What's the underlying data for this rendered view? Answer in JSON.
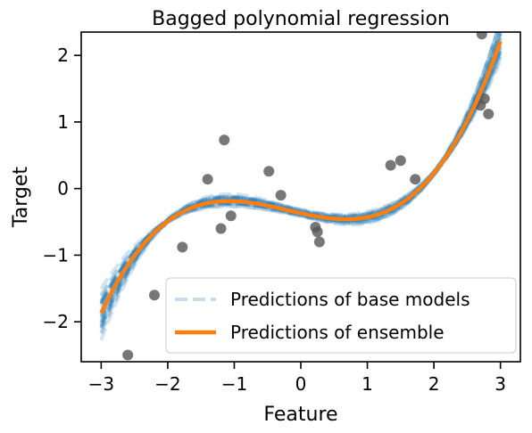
{
  "chart_data": {
    "type": "line",
    "title": "Bagged polynomial regression",
    "xlabel": "Feature",
    "ylabel": "Target",
    "xlim": [
      -3.3,
      3.3
    ],
    "ylim": [
      -2.6,
      2.35
    ],
    "xticks": [
      -3,
      -2,
      -1,
      0,
      1,
      2,
      3
    ],
    "yticks": [
      -2,
      -1,
      0,
      1,
      2
    ],
    "xtick_labels": [
      "−3",
      "−2",
      "−1",
      "0",
      "1",
      "2",
      "3"
    ],
    "ytick_labels": [
      "−2",
      "−1",
      "0",
      "1",
      "2"
    ],
    "grid": false,
    "legend_position": "bottom-right",
    "colors": {
      "base_models": "#1f77b4",
      "ensemble": "#ff7f0e",
      "points": "#555555"
    },
    "legend": [
      {
        "label": "Predictions of base models",
        "style": "dashed",
        "color": "#1f77b4"
      },
      {
        "label": "Predictions of ensemble",
        "style": "solid",
        "color": "#ff7f0e"
      }
    ],
    "ensemble_coefficients": {
      "a": 0.1,
      "b": 0.06,
      "c": -0.22,
      "d": -0.37
    },
    "ensemble_x_range": [
      -3,
      3
    ],
    "base_models": [
      {
        "a": 0.118,
        "b": 0.058,
        "c": -0.28,
        "d": -0.36
      },
      {
        "a": 0.084,
        "b": 0.068,
        "c": -0.15,
        "d": -0.4
      },
      {
        "a": 0.104,
        "b": 0.045,
        "c": -0.24,
        "d": -0.33
      },
      {
        "a": 0.095,
        "b": 0.075,
        "c": -0.19,
        "d": -0.42
      },
      {
        "a": 0.112,
        "b": 0.052,
        "c": -0.27,
        "d": -0.35
      },
      {
        "a": 0.09,
        "b": 0.064,
        "c": -0.18,
        "d": -0.38
      },
      {
        "a": 0.121,
        "b": 0.061,
        "c": -0.31,
        "d": -0.37
      },
      {
        "a": 0.081,
        "b": 0.055,
        "c": -0.14,
        "d": -0.34
      },
      {
        "a": 0.1,
        "b": 0.072,
        "c": -0.23,
        "d": -0.41
      },
      {
        "a": 0.108,
        "b": 0.048,
        "c": -0.25,
        "d": -0.32
      },
      {
        "a": 0.093,
        "b": 0.066,
        "c": -0.2,
        "d": -0.39
      },
      {
        "a": 0.115,
        "b": 0.057,
        "c": -0.29,
        "d": -0.36
      },
      {
        "a": 0.087,
        "b": 0.062,
        "c": -0.16,
        "d": -0.37
      },
      {
        "a": 0.102,
        "b": 0.069,
        "c": -0.22,
        "d": -0.4
      },
      {
        "a": 0.097,
        "b": 0.051,
        "c": -0.21,
        "d": -0.33
      },
      {
        "a": 0.125,
        "b": 0.05,
        "c": -0.33,
        "d": -0.34
      },
      {
        "a": 0.079,
        "b": 0.07,
        "c": -0.13,
        "d": -0.39
      },
      {
        "a": 0.106,
        "b": 0.063,
        "c": -0.24,
        "d": -0.38
      },
      {
        "a": 0.091,
        "b": 0.058,
        "c": -0.19,
        "d": -0.36
      },
      {
        "a": 0.11,
        "b": 0.066,
        "c": -0.26,
        "d": -0.41
      },
      {
        "a": 0.099,
        "b": 0.047,
        "c": -0.22,
        "d": -0.31
      },
      {
        "a": 0.117,
        "b": 0.071,
        "c": -0.3,
        "d": -0.39
      },
      {
        "a": 0.085,
        "b": 0.053,
        "c": -0.15,
        "d": -0.35
      },
      {
        "a": 0.103,
        "b": 0.06,
        "c": -0.23,
        "d": -0.37
      },
      {
        "a": 0.094,
        "b": 0.067,
        "c": -0.2,
        "d": -0.4
      },
      {
        "a": 0.113,
        "b": 0.054,
        "c": -0.28,
        "d": -0.34
      },
      {
        "a": 0.089,
        "b": 0.059,
        "c": -0.17,
        "d": -0.36
      },
      {
        "a": 0.107,
        "b": 0.065,
        "c": -0.25,
        "d": -0.38
      },
      {
        "a": 0.096,
        "b": 0.049,
        "c": -0.21,
        "d": -0.32
      },
      {
        "a": 0.12,
        "b": 0.068,
        "c": -0.31,
        "d": -0.4
      }
    ],
    "points": [
      {
        "x": -2.6,
        "y": -2.5
      },
      {
        "x": -2.2,
        "y": -1.6
      },
      {
        "x": -1.78,
        "y": -0.88
      },
      {
        "x": -1.4,
        "y": 0.14
      },
      {
        "x": -1.2,
        "y": -0.6
      },
      {
        "x": -1.15,
        "y": 0.73
      },
      {
        "x": -1.05,
        "y": -0.41
      },
      {
        "x": -0.48,
        "y": 0.26
      },
      {
        "x": -0.3,
        "y": -0.1
      },
      {
        "x": 0.22,
        "y": -0.58
      },
      {
        "x": 0.25,
        "y": -0.65
      },
      {
        "x": 0.28,
        "y": -0.8
      },
      {
        "x": 1.35,
        "y": 0.35
      },
      {
        "x": 1.5,
        "y": 0.42
      },
      {
        "x": 1.72,
        "y": 0.14
      },
      {
        "x": 2.7,
        "y": 1.25
      },
      {
        "x": 2.76,
        "y": 1.35
      },
      {
        "x": 2.82,
        "y": 1.12
      },
      {
        "x": 2.72,
        "y": 2.32
      }
    ]
  }
}
